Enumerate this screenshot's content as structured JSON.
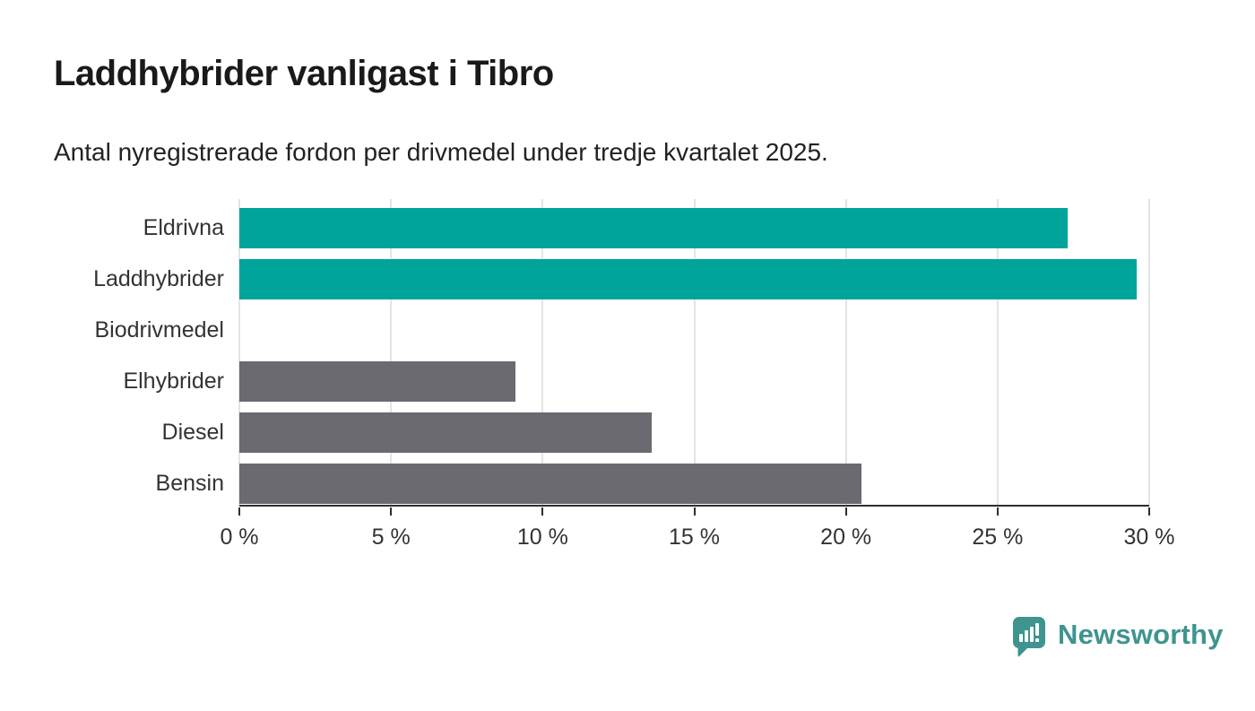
{
  "title": "Laddhybrider vanligast i Tibro",
  "subtitle": "Antal nyregistrerade fordon per drivmedel under tredje kvartalet 2025.",
  "chart_data": {
    "type": "bar",
    "orientation": "horizontal",
    "title": "Laddhybrider vanligast i Tibro",
    "subtitle": "Antal nyregistrerade fordon per drivmedel under tredje kvartalet 2025.",
    "categories": [
      "Eldrivna",
      "Laddhybrider",
      "Biodrivmedel",
      "Elhybrider",
      "Diesel",
      "Bensin"
    ],
    "values": [
      27.3,
      29.6,
      0,
      9.1,
      13.6,
      20.5
    ],
    "unit": "%",
    "xlim": [
      0,
      30
    ],
    "x_tick_values": [
      0,
      5,
      10,
      15,
      20,
      25,
      30
    ],
    "x_tick_labels": [
      "0 %",
      "5 %",
      "10 %",
      "15 %",
      "20 %",
      "25 %",
      "30 %"
    ],
    "grid": "vertical",
    "legend": "none",
    "bar_colors": [
      "#00A49B",
      "#00A49B",
      "#6B6A70",
      "#6B6A70",
      "#6B6A70",
      "#6B6A70"
    ],
    "highlight_color": "#00A49B",
    "default_color": "#6B6A70"
  },
  "colors": {
    "background": "#ffffff",
    "title_text": "#1a1a1a",
    "label_text": "#333333",
    "gridline": "#e4e4e4",
    "axis": "#2e2e2e",
    "brand": "#3F948F"
  },
  "footer": {
    "brand": "Newsworthy",
    "logo_icon": "bar-chart-speech-bubble-icon"
  }
}
